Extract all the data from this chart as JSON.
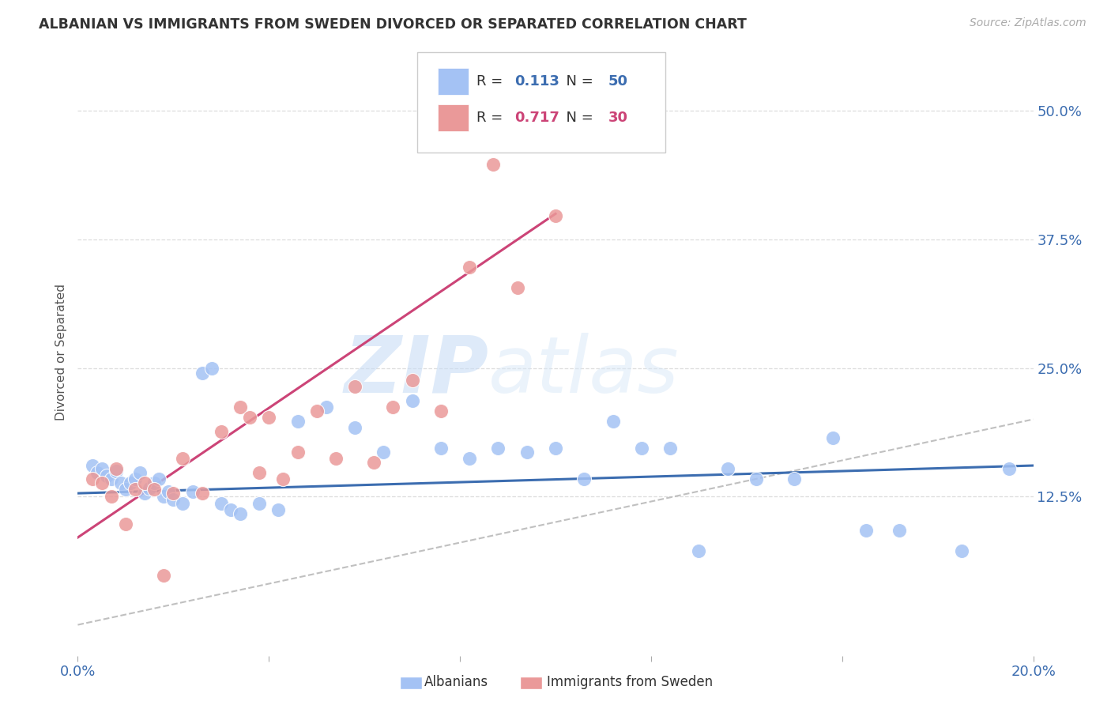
{
  "title": "ALBANIAN VS IMMIGRANTS FROM SWEDEN DIVORCED OR SEPARATED CORRELATION CHART",
  "source": "Source: ZipAtlas.com",
  "ylabel": "Divorced or Separated",
  "ytick_labels": [
    "12.5%",
    "25.0%",
    "37.5%",
    "50.0%"
  ],
  "ytick_values": [
    0.125,
    0.25,
    0.375,
    0.5
  ],
  "xlim": [
    0.0,
    0.2
  ],
  "ylim": [
    -0.03,
    0.56
  ],
  "legend_blue_r": "0.113",
  "legend_blue_n": "50",
  "legend_pink_r": "0.717",
  "legend_pink_n": "30",
  "blue_color": "#a4c2f4",
  "pink_color": "#ea9999",
  "blue_line_color": "#3c6db0",
  "pink_line_color": "#cc4477",
  "diagonal_color": "#c0c0c0",
  "watermark_zip": "ZIP",
  "watermark_atlas": "atlas",
  "blue_points_x": [
    0.003,
    0.004,
    0.005,
    0.006,
    0.007,
    0.008,
    0.009,
    0.01,
    0.011,
    0.012,
    0.013,
    0.014,
    0.015,
    0.016,
    0.017,
    0.018,
    0.019,
    0.02,
    0.022,
    0.024,
    0.026,
    0.028,
    0.03,
    0.032,
    0.034,
    0.038,
    0.042,
    0.046,
    0.052,
    0.058,
    0.064,
    0.07,
    0.076,
    0.082,
    0.088,
    0.094,
    0.1,
    0.106,
    0.112,
    0.118,
    0.124,
    0.13,
    0.136,
    0.142,
    0.15,
    0.158,
    0.165,
    0.172,
    0.185,
    0.195
  ],
  "blue_points_y": [
    0.155,
    0.148,
    0.152,
    0.145,
    0.142,
    0.15,
    0.138,
    0.132,
    0.138,
    0.142,
    0.148,
    0.128,
    0.133,
    0.138,
    0.142,
    0.125,
    0.13,
    0.122,
    0.118,
    0.13,
    0.245,
    0.25,
    0.118,
    0.112,
    0.108,
    0.118,
    0.112,
    0.198,
    0.212,
    0.192,
    0.168,
    0.218,
    0.172,
    0.162,
    0.172,
    0.168,
    0.172,
    0.142,
    0.198,
    0.172,
    0.172,
    0.072,
    0.152,
    0.142,
    0.142,
    0.182,
    0.092,
    0.092,
    0.072,
    0.152
  ],
  "pink_points_x": [
    0.003,
    0.005,
    0.007,
    0.008,
    0.01,
    0.012,
    0.014,
    0.016,
    0.018,
    0.02,
    0.022,
    0.026,
    0.03,
    0.034,
    0.036,
    0.038,
    0.04,
    0.043,
    0.046,
    0.05,
    0.054,
    0.058,
    0.062,
    0.066,
    0.07,
    0.076,
    0.082,
    0.087,
    0.092,
    0.1
  ],
  "pink_points_y": [
    0.142,
    0.138,
    0.125,
    0.152,
    0.098,
    0.132,
    0.138,
    0.132,
    0.048,
    0.128,
    0.162,
    0.128,
    0.188,
    0.212,
    0.202,
    0.148,
    0.202,
    0.142,
    0.168,
    0.208,
    0.162,
    0.232,
    0.158,
    0.212,
    0.238,
    0.208,
    0.348,
    0.448,
    0.328,
    0.398
  ],
  "blue_line_x": [
    0.0,
    0.2
  ],
  "blue_line_y": [
    0.128,
    0.155
  ],
  "pink_line_x": [
    0.0,
    0.1
  ],
  "pink_line_y": [
    0.085,
    0.4
  ],
  "diag_line_x": [
    0.0,
    0.2
  ],
  "diag_line_y": [
    0.0,
    0.2
  ],
  "background_color": "#ffffff",
  "grid_color": "#dddddd"
}
